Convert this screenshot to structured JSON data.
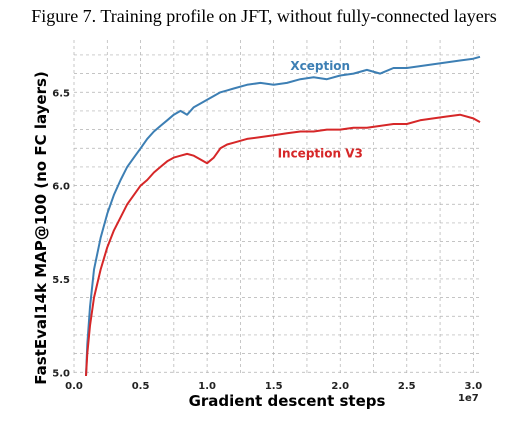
{
  "figure_title": "Figure 7. Training profile on JFT, without fully-connected layers",
  "colors": {
    "xception": "#3d7fb4",
    "inception": "#d62728",
    "grid": "#b0b0b0"
  },
  "chart_data": {
    "type": "line",
    "title": "",
    "xlabel": "Gradient descent steps",
    "ylabel": "FastEval14k MAP@100 (no FC layers)",
    "x_multiplier_label": "1e7",
    "xlim": [
      0.0,
      3.05
    ],
    "ylim": [
      4.98,
      6.78
    ],
    "x_ticks": [
      0.0,
      0.5,
      1.0,
      1.5,
      2.0,
      2.5,
      3.0
    ],
    "x_tick_labels": [
      "0.0",
      "0.5",
      "1.0",
      "1.5",
      "2.0",
      "2.5",
      "3.0"
    ],
    "y_ticks": [
      5.0,
      5.5,
      6.0,
      6.5
    ],
    "y_tick_labels": [
      "5.0",
      "5.5",
      "6.0",
      "6.5"
    ],
    "grid": true,
    "grid_style": "dashed",
    "minor_grid_step_y": 0.1,
    "minor_grid_step_x": 0.25,
    "series": [
      {
        "name": "Xception",
        "color": "#3d7fb4",
        "label_anchor": [
          2.0,
          6.62
        ],
        "x": [
          0.09,
          0.1,
          0.12,
          0.15,
          0.2,
          0.25,
          0.3,
          0.35,
          0.4,
          0.45,
          0.5,
          0.55,
          0.6,
          0.65,
          0.7,
          0.75,
          0.8,
          0.85,
          0.9,
          0.95,
          1.0,
          1.05,
          1.1,
          1.15,
          1.2,
          1.3,
          1.4,
          1.5,
          1.6,
          1.7,
          1.8,
          1.9,
          2.0,
          2.1,
          2.2,
          2.3,
          2.4,
          2.5,
          2.6,
          2.7,
          2.8,
          2.9,
          3.0,
          3.05
        ],
        "y": [
          4.98,
          5.15,
          5.35,
          5.55,
          5.72,
          5.85,
          5.95,
          6.03,
          6.1,
          6.15,
          6.2,
          6.25,
          6.29,
          6.32,
          6.35,
          6.38,
          6.4,
          6.38,
          6.42,
          6.44,
          6.46,
          6.48,
          6.5,
          6.51,
          6.52,
          6.54,
          6.55,
          6.54,
          6.55,
          6.57,
          6.58,
          6.57,
          6.59,
          6.6,
          6.62,
          6.6,
          6.63,
          6.63,
          6.64,
          6.65,
          6.66,
          6.67,
          6.68,
          6.69
        ]
      },
      {
        "name": "Inception V3",
        "color": "#d62728",
        "label_anchor": [
          2.0,
          6.15
        ],
        "x": [
          0.09,
          0.1,
          0.12,
          0.15,
          0.2,
          0.25,
          0.3,
          0.35,
          0.4,
          0.45,
          0.5,
          0.55,
          0.6,
          0.65,
          0.7,
          0.75,
          0.8,
          0.85,
          0.9,
          0.95,
          1.0,
          1.05,
          1.1,
          1.15,
          1.2,
          1.3,
          1.4,
          1.5,
          1.6,
          1.7,
          1.8,
          1.9,
          2.0,
          2.1,
          2.2,
          2.3,
          2.4,
          2.5,
          2.6,
          2.7,
          2.8,
          2.9,
          3.0,
          3.05
        ],
        "y": [
          4.98,
          5.1,
          5.25,
          5.4,
          5.55,
          5.67,
          5.76,
          5.83,
          5.9,
          5.95,
          6.0,
          6.03,
          6.07,
          6.1,
          6.13,
          6.15,
          6.16,
          6.17,
          6.16,
          6.14,
          6.12,
          6.15,
          6.2,
          6.22,
          6.23,
          6.25,
          6.26,
          6.27,
          6.28,
          6.29,
          6.29,
          6.3,
          6.3,
          6.31,
          6.31,
          6.32,
          6.33,
          6.33,
          6.35,
          6.36,
          6.37,
          6.38,
          6.36,
          6.34
        ]
      }
    ]
  }
}
